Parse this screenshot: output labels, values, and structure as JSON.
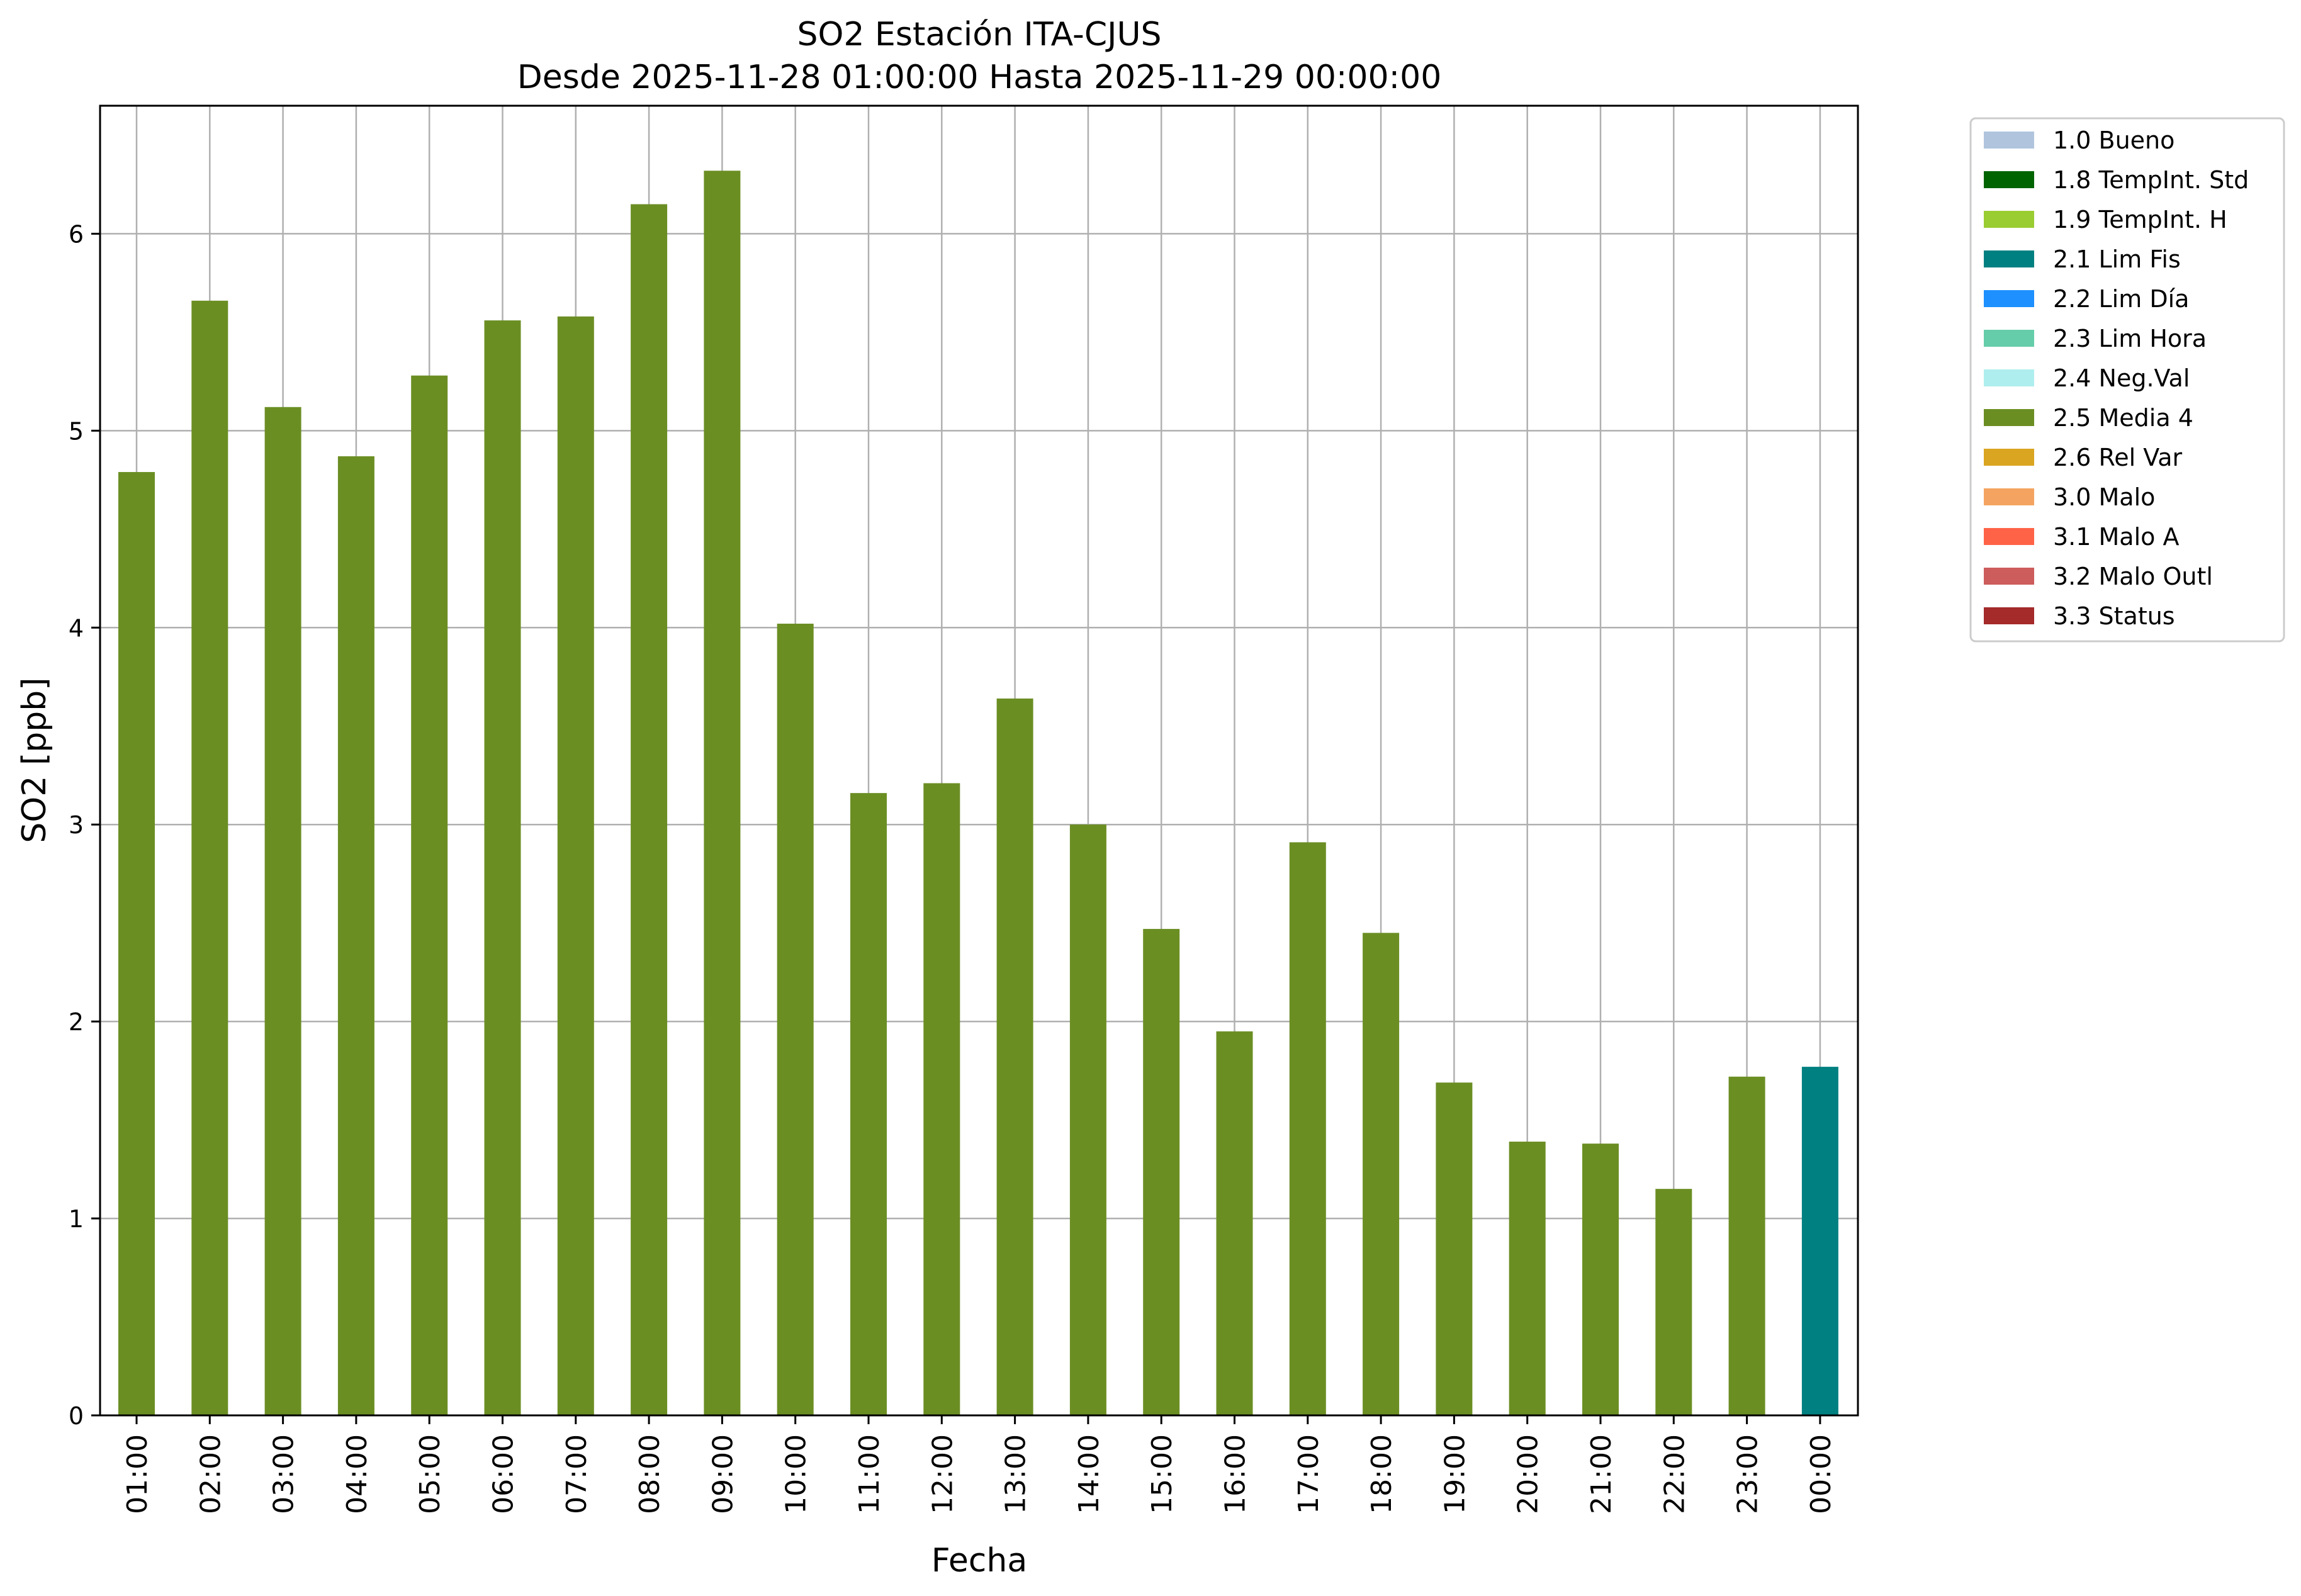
{
  "chart_data": {
    "type": "bar",
    "title": "SO2 Estación ITA-CJUS",
    "subtitle": "Desde 2025-11-28 01:00:00 Hasta 2025-11-29 00:00:00",
    "xlabel": "Fecha",
    "ylabel": "SO2 [ppb]",
    "ylim": [
      0,
      6.65
    ],
    "yticks": [
      0,
      1,
      2,
      3,
      4,
      5,
      6
    ],
    "grid": true,
    "legend_position": "outside-top-right",
    "categories": [
      "01:00",
      "02:00",
      "03:00",
      "04:00",
      "05:00",
      "06:00",
      "07:00",
      "08:00",
      "09:00",
      "10:00",
      "11:00",
      "12:00",
      "13:00",
      "14:00",
      "15:00",
      "16:00",
      "17:00",
      "18:00",
      "19:00",
      "20:00",
      "21:00",
      "22:00",
      "23:00",
      "00:00"
    ],
    "values": [
      4.79,
      5.66,
      5.12,
      4.87,
      5.28,
      5.56,
      5.58,
      6.15,
      6.32,
      4.02,
      3.16,
      3.21,
      3.64,
      3.0,
      2.47,
      1.95,
      2.91,
      2.45,
      1.69,
      1.39,
      1.38,
      1.15,
      1.72,
      1.77
    ],
    "flags": [
      "2.5 Media 4",
      "2.5 Media 4",
      "2.5 Media 4",
      "2.5 Media 4",
      "2.5 Media 4",
      "2.5 Media 4",
      "2.5 Media 4",
      "2.5 Media 4",
      "2.5 Media 4",
      "2.5 Media 4",
      "2.5 Media 4",
      "2.5 Media 4",
      "2.5 Media 4",
      "2.5 Media 4",
      "2.5 Media 4",
      "2.5 Media 4",
      "2.5 Media 4",
      "2.5 Media 4",
      "2.5 Media 4",
      "2.5 Media 4",
      "2.5 Media 4",
      "2.5 Media 4",
      "2.5 Media 4",
      "2.1 Lim Fis"
    ],
    "legend": [
      {
        "label": "1.0 Bueno",
        "color": "#b0c4de"
      },
      {
        "label": "1.8 TempInt. Std",
        "color": "#006400"
      },
      {
        "label": "1.9 TempInt. H",
        "color": "#9acd32"
      },
      {
        "label": "2.1 Lim Fis",
        "color": "#008080"
      },
      {
        "label": "2.2 Lim Día",
        "color": "#1e90ff"
      },
      {
        "label": "2.3 Lim Hora",
        "color": "#66cdaa"
      },
      {
        "label": "2.4 Neg.Val",
        "color": "#afeeee"
      },
      {
        "label": "2.5 Media 4",
        "color": "#6b8e23"
      },
      {
        "label": "2.6 Rel Var",
        "color": "#daa520"
      },
      {
        "label": "3.0 Malo",
        "color": "#f4a460"
      },
      {
        "label": "3.1 Malo A",
        "color": "#ff6347"
      },
      {
        "label": "3.2 Malo Outl",
        "color": "#cd5c5c"
      },
      {
        "label": "3.3 Status",
        "color": "#a52a2a"
      }
    ]
  }
}
